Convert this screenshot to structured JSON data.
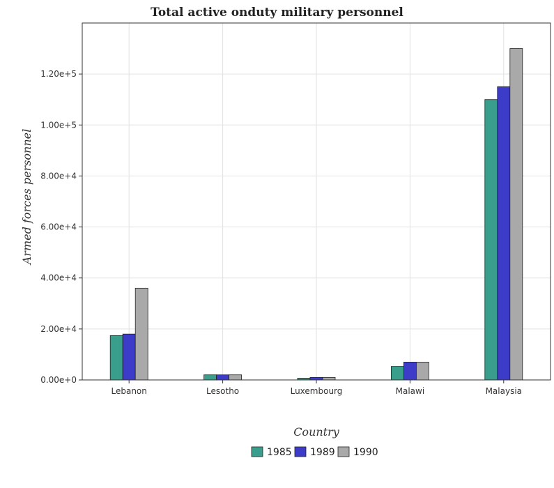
{
  "chart_data": {
    "type": "bar",
    "title": "Total active onduty military personnel",
    "xlabel": "Country",
    "ylabel": "Armed forces personnel",
    "categories": [
      "Lebanon",
      "Lesotho",
      "Luxembourg",
      "Malawi",
      "Malaysia"
    ],
    "series": [
      {
        "name": "1985",
        "color": "#3a9e8c",
        "values": [
          17400,
          2000,
          700,
          5300,
          110000
        ]
      },
      {
        "name": "1989",
        "color": "#3c3cc8",
        "values": [
          18000,
          2000,
          1000,
          7000,
          115000
        ]
      },
      {
        "name": "1990",
        "color": "#a9a9a9",
        "values": [
          36000,
          2000,
          1000,
          7000,
          130000
        ]
      }
    ],
    "ylim": [
      0,
      140000
    ],
    "yticks": [
      0,
      20000,
      40000,
      60000,
      80000,
      100000,
      120000
    ],
    "ytick_labels": [
      "0.00e+0",
      "2.00e+4",
      "4.00e+4",
      "6.00e+4",
      "8.00e+4",
      "1.00e+5",
      "1.20e+5"
    ],
    "grid": true,
    "legend_position": "bottom-center"
  }
}
